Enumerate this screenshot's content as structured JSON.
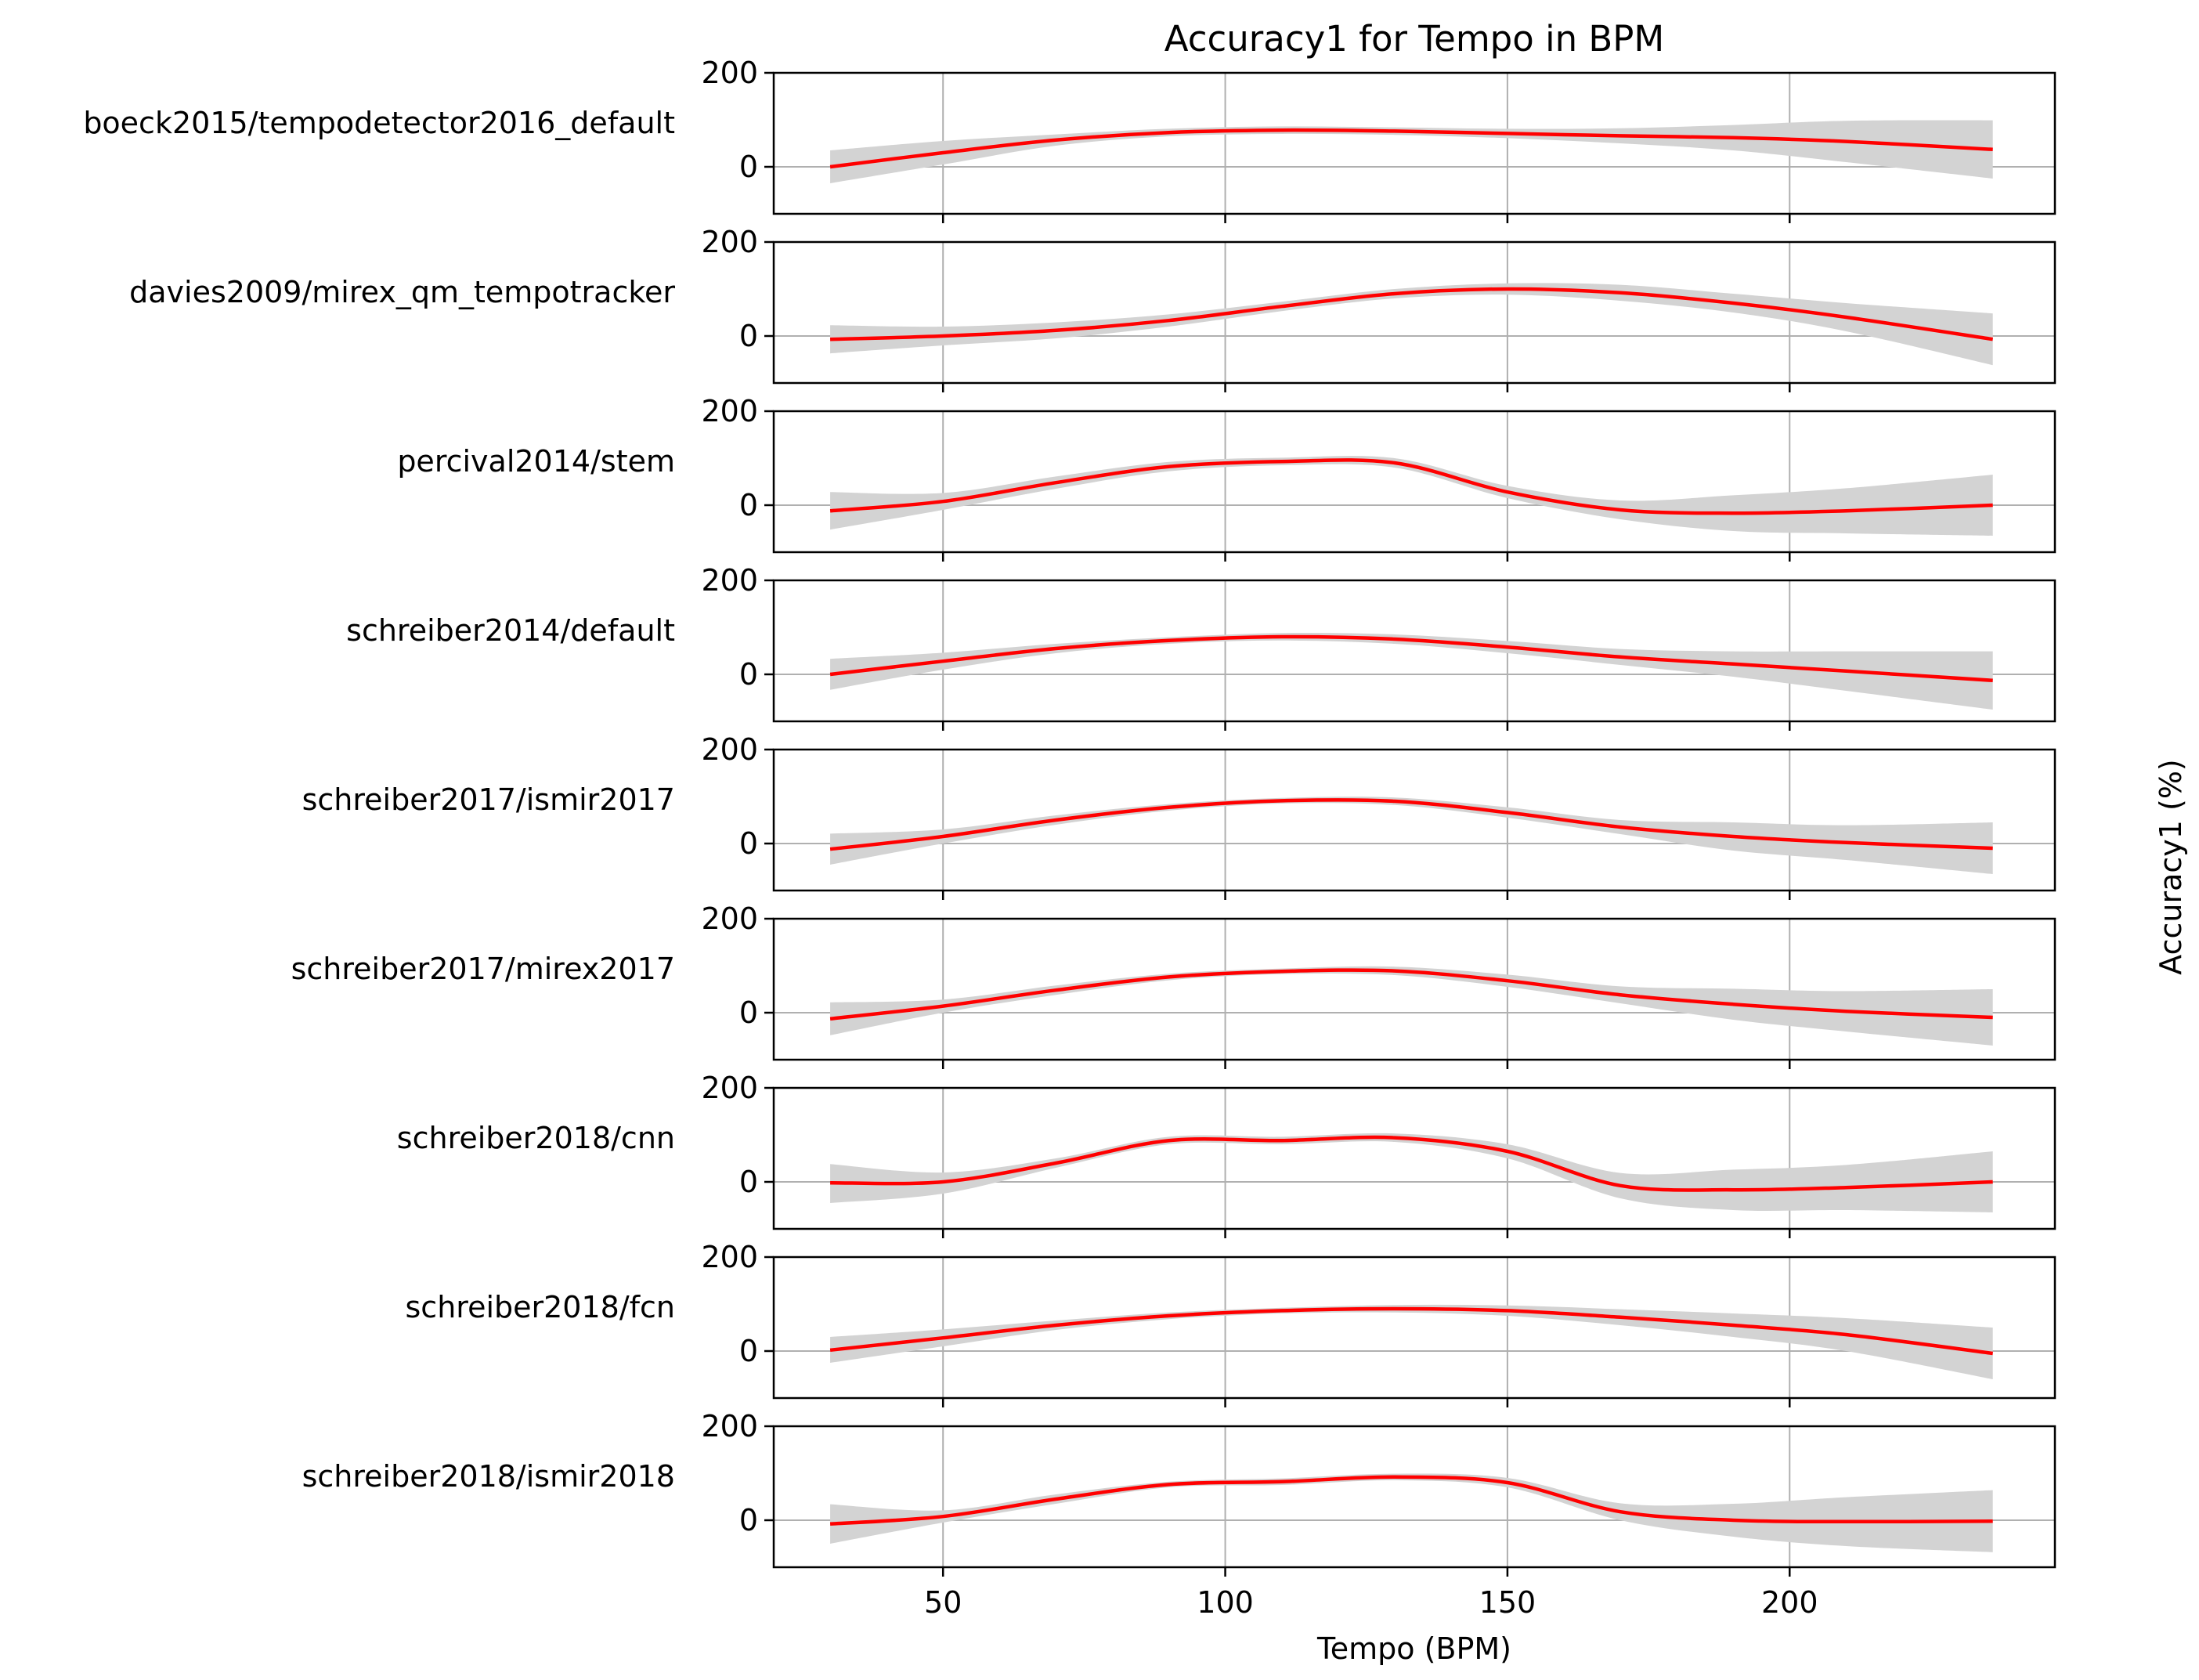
{
  "chart_data": {
    "type": "line",
    "title": "Accuracy1 for Tempo in BPM",
    "xlabel": "Tempo (BPM)",
    "ylabel": "Accuracy1 (%)",
    "xlim": [
      20,
      247
    ],
    "ylim": [
      -100,
      200
    ],
    "x_ticks": [
      50,
      100,
      150,
      200
    ],
    "y_ticks": [
      0,
      200
    ],
    "grid": true,
    "line_color": "#ff0000",
    "band_color": "#d3d3d3",
    "x": [
      30,
      50,
      70,
      90,
      110,
      130,
      150,
      170,
      190,
      210,
      236
    ],
    "series": [
      {
        "name": "boeck2015/tempodetector2016_default",
        "values": [
          0,
          30,
          57,
          73,
          78,
          76,
          71,
          66,
          62,
          54,
          37
        ],
        "lower": [
          -35,
          5,
          45,
          65,
          70,
          68,
          61,
          50,
          35,
          10,
          -25
        ],
        "upper": [
          35,
          55,
          69,
          81,
          86,
          84,
          81,
          82,
          89,
          98,
          99
        ]
      },
      {
        "name": "davies2009/mirex_qm_tempotracker",
        "values": [
          -7,
          0,
          12,
          33,
          63,
          90,
          100,
          92,
          70,
          40,
          -7
        ],
        "lower": [
          -37,
          -20,
          -5,
          20,
          53,
          80,
          88,
          75,
          50,
          10,
          -62
        ],
        "upper": [
          23,
          20,
          29,
          46,
          73,
          100,
          112,
          109,
          90,
          70,
          48
        ]
      },
      {
        "name": "percival2014/stem",
        "values": [
          -12,
          8,
          48,
          82,
          93,
          90,
          28,
          -10,
          -17,
          -12,
          0
        ],
        "lower": [
          -52,
          -10,
          35,
          72,
          85,
          80,
          15,
          -30,
          -55,
          -60,
          -65
        ],
        "upper": [
          28,
          26,
          61,
          92,
          101,
          100,
          41,
          10,
          21,
          36,
          65
        ]
      },
      {
        "name": "schreiber2014/default",
        "values": [
          0,
          28,
          55,
          72,
          80,
          75,
          58,
          37,
          22,
          7,
          -13
        ],
        "lower": [
          -33,
          10,
          45,
          65,
          72,
          65,
          45,
          20,
          -5,
          -35,
          -75
        ],
        "upper": [
          33,
          46,
          65,
          79,
          88,
          85,
          71,
          54,
          49,
          49,
          49
        ]
      },
      {
        "name": "schreiber2017/ismir2017",
        "values": [
          -12,
          15,
          50,
          77,
          91,
          90,
          66,
          35,
          15,
          2,
          -10
        ],
        "lower": [
          -45,
          0,
          40,
          70,
          85,
          82,
          55,
          20,
          -15,
          -35,
          -65
        ],
        "upper": [
          21,
          30,
          60,
          84,
          97,
          98,
          77,
          50,
          45,
          39,
          45
        ]
      },
      {
        "name": "schreiber2017/mirex2017",
        "values": [
          -13,
          14,
          48,
          76,
          88,
          89,
          68,
          38,
          18,
          3,
          -10
        ],
        "lower": [
          -48,
          0,
          38,
          69,
          82,
          80,
          55,
          20,
          -15,
          -40,
          -70
        ],
        "upper": [
          22,
          28,
          58,
          83,
          94,
          98,
          81,
          56,
          51,
          46,
          50
        ]
      },
      {
        "name": "schreiber2018/cnn",
        "values": [
          -2,
          0,
          40,
          88,
          88,
          94,
          65,
          -8,
          -17,
          -12,
          0
        ],
        "lower": [
          -45,
          -25,
          30,
          80,
          80,
          85,
          50,
          -35,
          -60,
          -60,
          -65
        ],
        "upper": [
          38,
          20,
          50,
          96,
          96,
          103,
          80,
          19,
          26,
          36,
          65
        ]
      },
      {
        "name": "schreiber2018/fcn",
        "values": [
          2,
          28,
          55,
          75,
          86,
          90,
          86,
          72,
          55,
          35,
          -5
        ],
        "lower": [
          -25,
          10,
          45,
          68,
          80,
          82,
          75,
          55,
          30,
          0,
          -60
        ],
        "upper": [
          30,
          46,
          65,
          82,
          92,
          98,
          97,
          89,
          80,
          70,
          50
        ]
      },
      {
        "name": "schreiber2018/ismir2018",
        "values": [
          -8,
          8,
          45,
          76,
          82,
          92,
          80,
          18,
          0,
          -3,
          -2
        ],
        "lower": [
          -50,
          -5,
          35,
          70,
          75,
          85,
          70,
          0,
          -35,
          -55,
          -68
        ],
        "upper": [
          34,
          21,
          55,
          82,
          89,
          99,
          90,
          36,
          35,
          49,
          64
        ]
      }
    ]
  }
}
